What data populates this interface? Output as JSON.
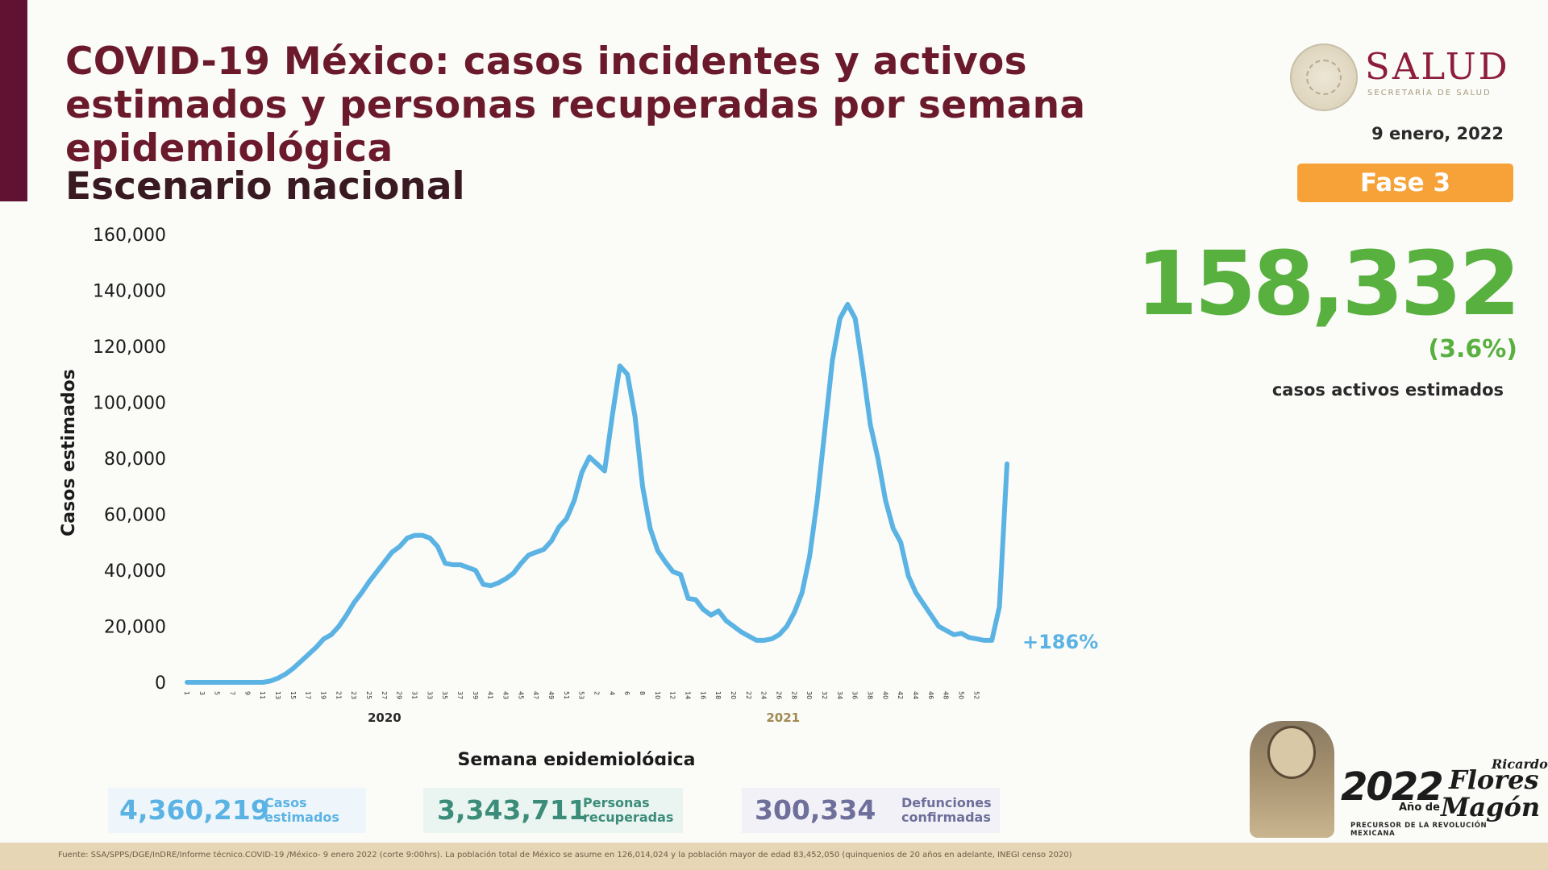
{
  "header": {
    "title": "COVID-19 México: casos incidentes y activos estimados y personas recuperadas por semana epidemiológica",
    "subtitle": "Escenario nacional",
    "date": "9 enero, 2022"
  },
  "logo": {
    "name": "SALUD",
    "sub": "SECRETARÍA DE SALUD"
  },
  "phase": "Fase 3",
  "active_cases": {
    "value": "158,332",
    "percent": "(3.6%)",
    "label": "casos activos estimados"
  },
  "chart_data": {
    "type": "line",
    "ylabel": "Casos estimados",
    "xlabel": "Semana epidemiológica",
    "ylim": [
      0,
      160000
    ],
    "yticks": [
      "0",
      "20,000",
      "40,000",
      "60,000",
      "80,000",
      "100,000",
      "120,000",
      "140,000",
      "160,000"
    ],
    "grid": false,
    "year_groups": [
      {
        "label": "2020",
        "weeks": [
          1,
          53
        ]
      },
      {
        "label": "2021",
        "weeks": [
          1,
          52
        ]
      }
    ],
    "x_tick_labels": [
      "1",
      "3",
      "5",
      "7",
      "9",
      "11",
      "13",
      "15",
      "17",
      "19",
      "21",
      "23",
      "25",
      "27",
      "29",
      "31",
      "33",
      "35",
      "37",
      "39",
      "41",
      "43",
      "45",
      "47",
      "49",
      "51",
      "53",
      "2",
      "4",
      "6",
      "8",
      "10",
      "12",
      "14",
      "16",
      "18",
      "20",
      "22",
      "24",
      "26",
      "28",
      "30",
      "32",
      "34",
      "36",
      "38",
      "40",
      "42",
      "44",
      "46",
      "48",
      "50",
      "52"
    ],
    "series": [
      {
        "name": "",
        "color": "#5bb3e4",
        "values": [
          0,
          0,
          0,
          0,
          0,
          0,
          0,
          0,
          0,
          0,
          0,
          500,
          1500,
          3000,
          5000,
          7500,
          10000,
          12500,
          15500,
          17000,
          20000,
          24000,
          28500,
          32000,
          36000,
          39500,
          43000,
          46500,
          48500,
          51500,
          52500,
          52500,
          51500,
          48500,
          42500,
          42000,
          42000,
          41000,
          40000,
          35000,
          34500,
          35500,
          37000,
          39000,
          42500,
          45500,
          46500,
          47500,
          50500,
          55500,
          58500,
          65000,
          75000,
          80500,
          78000,
          75500,
          95000,
          113000,
          110000,
          95000,
          70000,
          55000,
          47000,
          43000,
          39500,
          38500,
          30000,
          29500,
          26000,
          24000,
          25500,
          22000,
          20000,
          18000,
          16500,
          15000,
          15000,
          15500,
          17000,
          20000,
          25000,
          32000,
          45000,
          65000,
          90000,
          115000,
          130000,
          135000,
          130000,
          112000,
          92000,
          80000,
          65000,
          55000,
          50000,
          38000,
          32000,
          28000,
          24000,
          20000,
          18500,
          17000,
          17500,
          16000,
          15500,
          15000,
          15000,
          27000,
          78000
        ]
      }
    ],
    "annotation": "+186%"
  },
  "stats": {
    "cases": {
      "value": "4,360,219",
      "label_line1": "Casos",
      "label_line2": "estimados"
    },
    "recovered": {
      "value": "3,343,711",
      "label_line1": "Personas",
      "label_line2": "recuperadas"
    },
    "deaths": {
      "value": "300,334",
      "label_line1": "Defunciones",
      "label_line2": "confirmadas"
    }
  },
  "footer": "Fuente: SSA/SPPS/DGE/InDRE/Informe técnico.COVID-19 /México- 9 enero 2022 (corte 9:00hrs). La población total de México se asume en 126,014,024 y la población mayor de edad 83,452,050 (quinquenios de 20 años en adelante, INEGI censo 2020)",
  "badge": {
    "year": "2022",
    "anio": "Año de",
    "name_line1": "Ricardo",
    "name_line2": "Flores",
    "name_line3": "Magón",
    "tagline": "PRECURSOR DE LA REVOLUCIÓN MEXICANA"
  },
  "colors": {
    "brand": "#611232",
    "line": "#5bb3e4",
    "active": "#58b03f",
    "phase": "#f7a238"
  }
}
